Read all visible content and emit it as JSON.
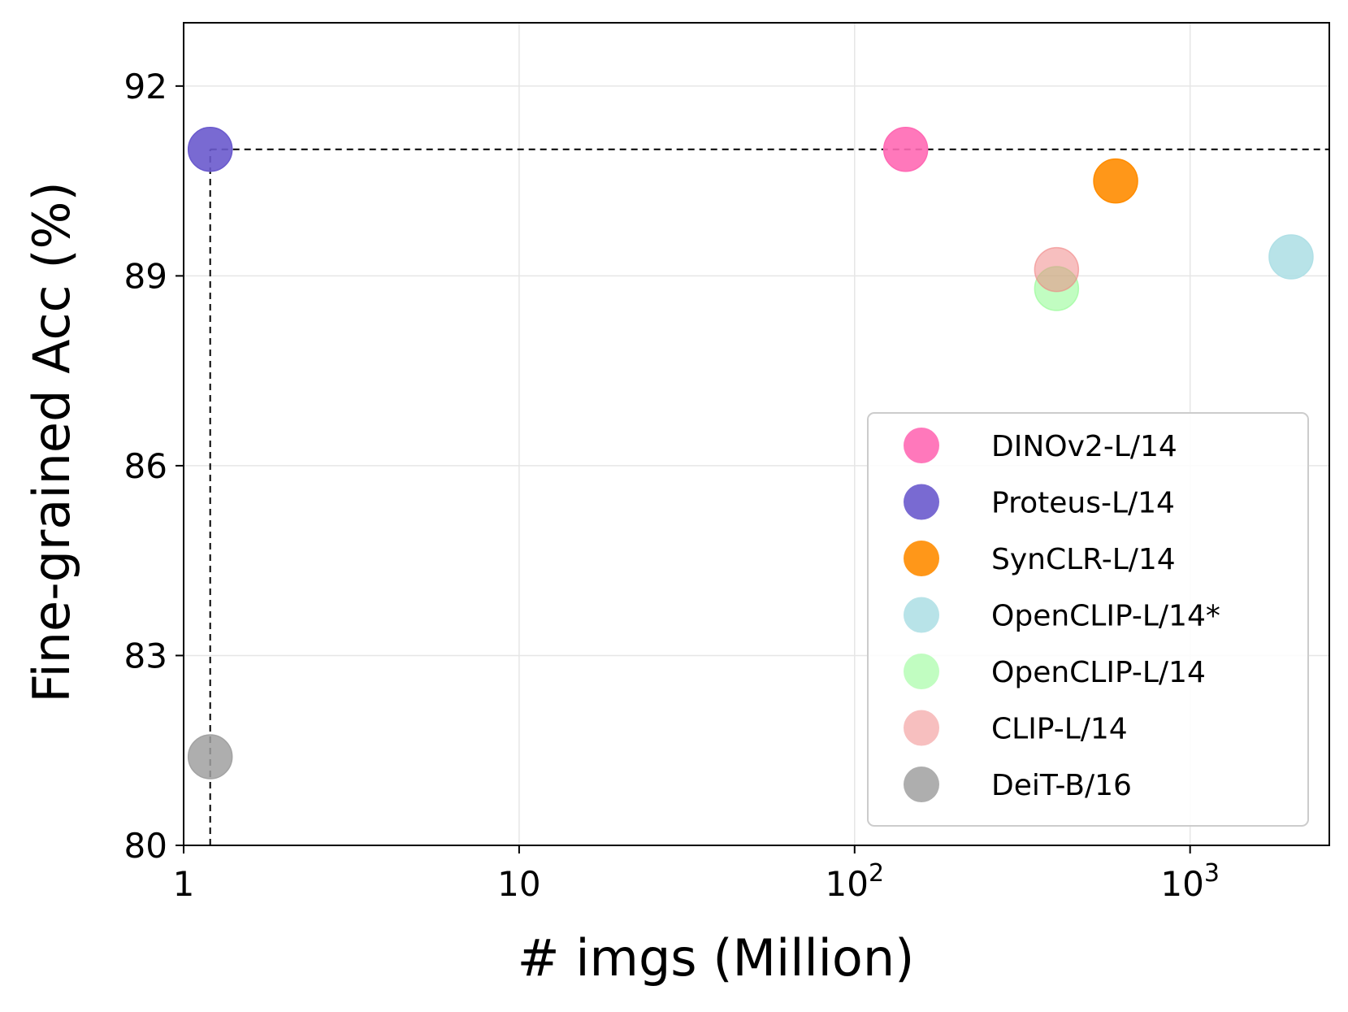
{
  "chart_data": {
    "type": "scatter",
    "xscale": "log",
    "xlabel": "# imgs (Million)",
    "ylabel": "Fine-grained Acc (%)",
    "xlim": [
      1,
      2600
    ],
    "ylim": [
      80,
      93
    ],
    "grid": true,
    "legend_position": "lower-right",
    "x_ticks": [
      {
        "value": 1,
        "label": "1",
        "sup": ""
      },
      {
        "value": 10,
        "label": "10",
        "sup": ""
      },
      {
        "value": 100,
        "label": "10",
        "sup": "2"
      },
      {
        "value": 1000,
        "label": "10",
        "sup": "3"
      }
    ],
    "y_ticks": [
      {
        "value": 80,
        "label": "80"
      },
      {
        "value": 83,
        "label": "83"
      },
      {
        "value": 86,
        "label": "86"
      },
      {
        "value": 89,
        "label": "89"
      },
      {
        "value": 92,
        "label": "92"
      }
    ],
    "series": [
      {
        "name": "DINOv2-L/14",
        "x": 142,
        "y": 91.0,
        "color": "#ff69b4",
        "alpha": 0.9
      },
      {
        "name": "Proteus-L/14",
        "x": 1.2,
        "y": 91.0,
        "color": "#6a5acd",
        "alpha": 0.9
      },
      {
        "name": "SynCLR-L/14",
        "x": 600,
        "y": 90.5,
        "color": "#ff8c00",
        "alpha": 0.9
      },
      {
        "name": "OpenCLIP-L/14*",
        "x": 2000,
        "y": 89.3,
        "color": "#b0e0e6",
        "alpha": 0.9
      },
      {
        "name": "OpenCLIP-L/14",
        "x": 400,
        "y": 88.8,
        "color": "#98fb98",
        "alpha": 0.6
      },
      {
        "name": "CLIP-L/14",
        "x": 400,
        "y": 89.1,
        "color": "#f08080",
        "alpha": 0.5
      },
      {
        "name": "DeiT-B/16",
        "x": 1.2,
        "y": 81.4,
        "color": "#a0a0a0",
        "alpha": 0.85
      }
    ],
    "reference_lines": [
      {
        "orientation": "horizontal",
        "value": 91.0,
        "from_x": 1.2,
        "style": "dashed"
      },
      {
        "orientation": "vertical",
        "value": 1.2,
        "from_y": 80,
        "to_y": 91.0,
        "style": "dashed"
      }
    ]
  }
}
